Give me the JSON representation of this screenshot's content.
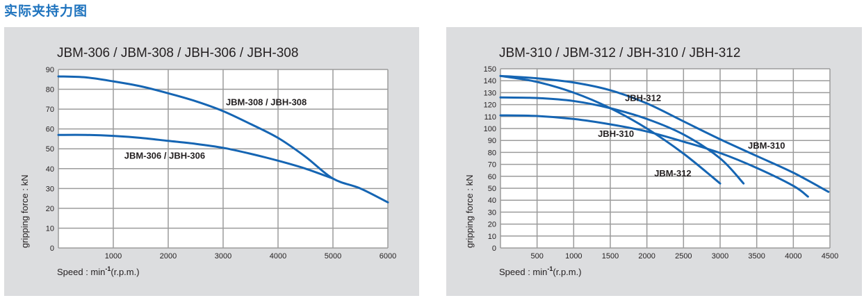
{
  "page": {
    "heading": "实际夹持力图",
    "heading_color": "#1e73be",
    "panel_bg": "#dcdddf",
    "curve_color": "#1565b3"
  },
  "chart_data": [
    {
      "type": "line",
      "title": "JBM-306 / JBM-308  /  JBH-306 / JBH-308",
      "xlabel_main": "Speed : min",
      "xlabel_sup": "-1",
      "xlabel_tail": "(r.p.m.)",
      "ylabel": "gripping force : kN",
      "xlim": [
        0,
        6000
      ],
      "ylim": [
        0,
        90
      ],
      "xticks": [
        1000,
        2000,
        3000,
        4000,
        5000,
        6000
      ],
      "xtick_labels": [
        "1000",
        "2000",
        "3000",
        "4000",
        "5000",
        "6000"
      ],
      "yticks": [
        0,
        10,
        20,
        30,
        40,
        50,
        60,
        70,
        80,
        90
      ],
      "ytick_labels": [
        "0",
        "10",
        "20",
        "30",
        "40",
        "50",
        "60",
        "70",
        "80",
        "90"
      ],
      "grid": true,
      "series": [
        {
          "name": "JBM-308 / JBH-308",
          "label": "JBM-308 / JBH-308",
          "label_at": [
            3050,
            72
          ],
          "x": [
            0,
            500,
            1000,
            1500,
            2000,
            2500,
            3000,
            3500,
            4000,
            4500,
            5000,
            5500,
            6000
          ],
          "y": [
            86.5,
            86,
            84,
            81.5,
            78,
            74,
            69,
            62.5,
            55.5,
            46,
            35,
            30,
            23
          ]
        },
        {
          "name": "JBM-306 / JBH-306",
          "label": "JBM-306 / JBH-306",
          "label_at": [
            1200,
            45
          ],
          "x": [
            0,
            500,
            1000,
            1500,
            2000,
            2500,
            3000,
            3500,
            4000,
            4500,
            5000
          ],
          "y": [
            57,
            57,
            56.5,
            55.5,
            54,
            52.5,
            50.5,
            47.5,
            44,
            40,
            35
          ]
        }
      ]
    },
    {
      "type": "line",
      "title": "JBM-310 / JBM-312 / JBH-310 / JBH-312",
      "xlabel_main": "Speed : min",
      "xlabel_sup": "-1",
      "xlabel_tail": "(r.p.m.)",
      "ylabel": "gripping force : kN",
      "xlim": [
        0,
        4500
      ],
      "ylim": [
        0,
        150
      ],
      "xticks": [
        500,
        1000,
        1500,
        2000,
        2500,
        3000,
        3500,
        4000,
        4500
      ],
      "xtick_labels": [
        "500",
        "1000",
        "1500",
        "2000",
        "2500",
        "3000",
        "3500",
        "4000",
        "4500"
      ],
      "yticks": [
        0,
        10,
        20,
        30,
        40,
        50,
        60,
        70,
        80,
        90,
        100,
        110,
        120,
        130,
        140,
        150
      ],
      "ytick_labels": [
        "0",
        "10",
        "20",
        "30",
        "40",
        "50",
        "60",
        "70",
        "80",
        "90",
        "100",
        "110",
        "120",
        "130",
        "140",
        "150"
      ],
      "grid": true,
      "series": [
        {
          "name": "JBM-310",
          "label": "JBM-310",
          "label_at": [
            3380,
            83
          ],
          "x": [
            0,
            500,
            1000,
            1500,
            2000,
            2500,
            3000,
            3500,
            4000,
            4480
          ],
          "y": [
            144,
            142,
            138.5,
            132,
            121,
            106,
            91,
            77,
            63,
            47
          ]
        },
        {
          "name": "JBM-312",
          "label": "JBM-312",
          "label_at": [
            2100,
            60
          ],
          "x": [
            0,
            500,
            1000,
            1500,
            2000,
            2500,
            3000
          ],
          "y": [
            144,
            139,
            130,
            117,
            100,
            79,
            54
          ]
        },
        {
          "name": "JBH-312",
          "label": "JBH-312",
          "label_at": [
            1700,
            123
          ],
          "x": [
            0,
            500,
            1000,
            1500,
            2000,
            2500,
            3000,
            3320
          ],
          "y": [
            126,
            125.5,
            123,
            117,
            108,
            95,
            75,
            54
          ]
        },
        {
          "name": "JBH-310",
          "label": "JBH-310",
          "label_at": [
            1330,
            93
          ],
          "x": [
            0,
            500,
            1000,
            1500,
            2000,
            2500,
            3000,
            3500,
            4000,
            4200
          ],
          "y": [
            111,
            110.5,
            108,
            103.5,
            97.5,
            89,
            79.5,
            67,
            52,
            43
          ]
        }
      ]
    }
  ]
}
